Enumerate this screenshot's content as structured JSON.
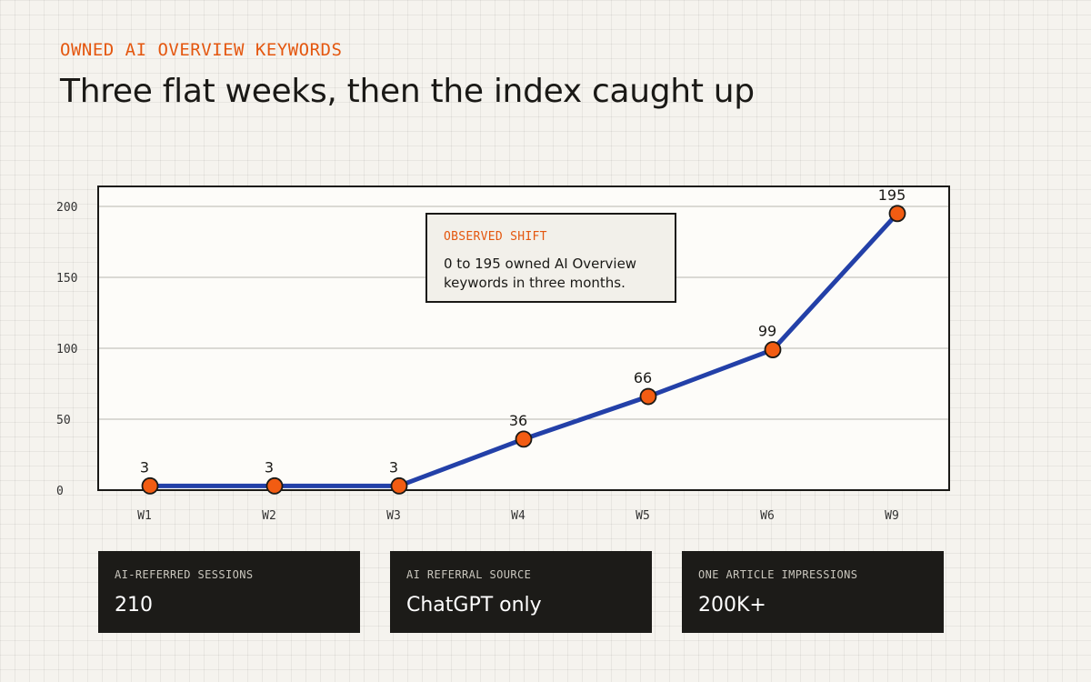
{
  "header": {
    "eyebrow": "OWNED AI OVERVIEW KEYWORDS",
    "title": "Three flat weeks, then the index caught up"
  },
  "chart_data": {
    "type": "line",
    "categories": [
      "W1",
      "W2",
      "W3",
      "W4",
      "W5",
      "W6",
      "W9"
    ],
    "values": [
      3,
      3,
      3,
      36,
      66,
      99,
      195
    ],
    "data_labels": [
      "3",
      "3",
      "3",
      "36",
      "66",
      "99",
      "195"
    ],
    "y_ticks": [
      0,
      50,
      100,
      150,
      200
    ],
    "ylim": [
      0,
      200
    ],
    "grid": "horizontal",
    "legend": "none",
    "colors": {
      "line": "#2340a8",
      "marker": "#f25c12",
      "marker_stroke": "#1a1916"
    }
  },
  "callout": {
    "label": "OBSERVED SHIFT",
    "text": "0 to 195 owned AI Overview keywords in three months."
  },
  "cards": [
    {
      "label": "AI-REFERRED SESSIONS",
      "value": "210"
    },
    {
      "label": "AI REFERRAL SOURCE",
      "value": "ChatGPT only"
    },
    {
      "label": "ONE ARTICLE IMPRESSIONS",
      "value": "200K+"
    }
  ],
  "colors": {
    "accent": "#e4570f",
    "ink": "#1a1916",
    "card_bg": "#1c1b18"
  }
}
